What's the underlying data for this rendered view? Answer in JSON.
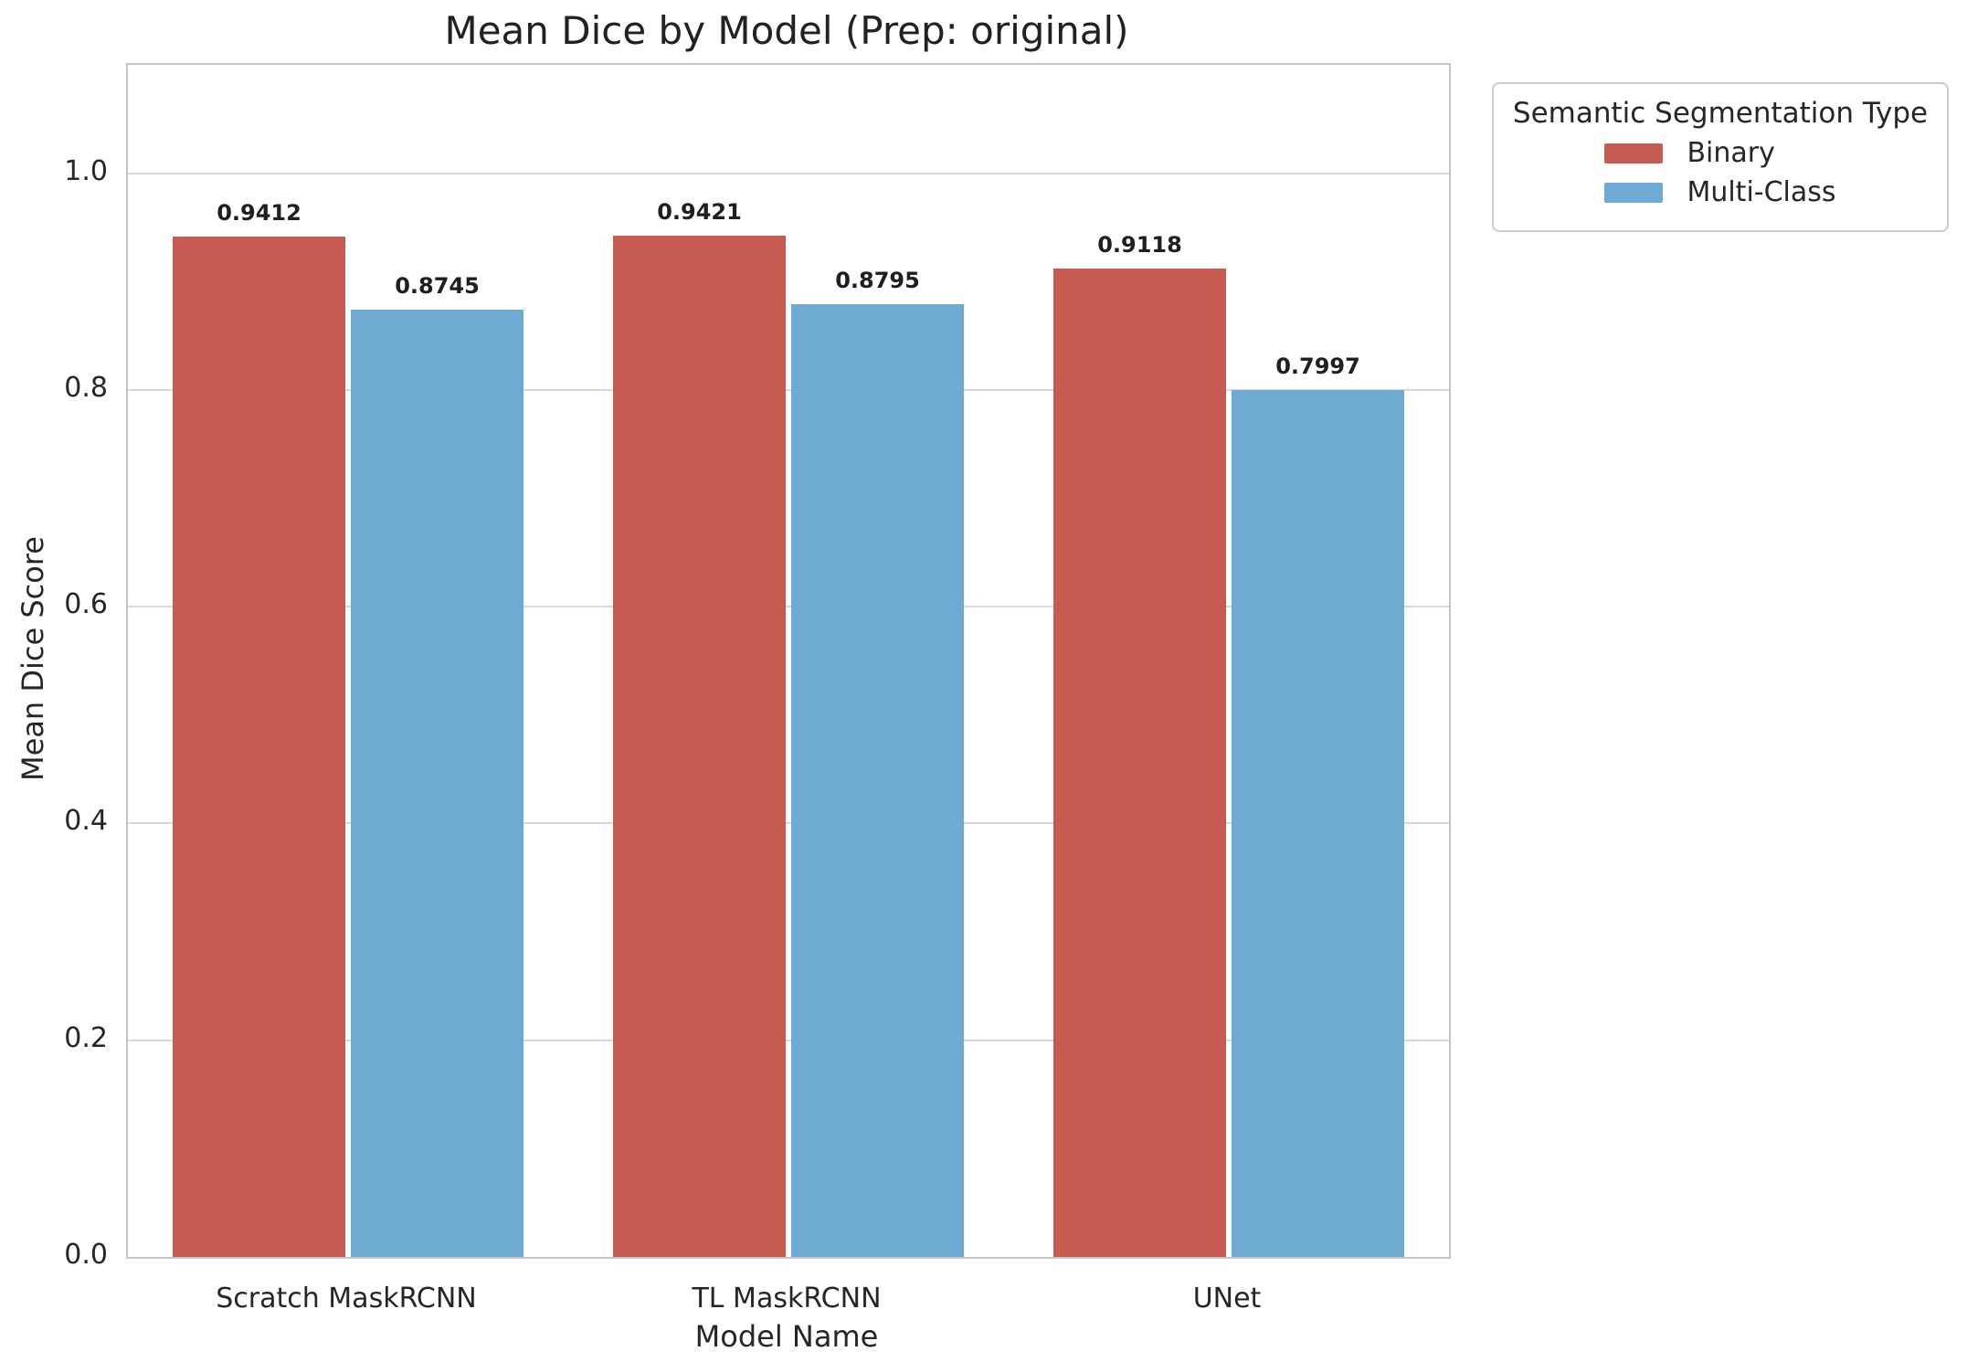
{
  "chart_data": {
    "type": "bar",
    "title": "Mean Dice by Model (Prep: original)",
    "xlabel": "Model Name",
    "ylabel": "Mean Dice Score",
    "categories": [
      "Scratch MaskRCNN",
      "TL MaskRCNN",
      "UNet"
    ],
    "series": [
      {
        "name": "Binary",
        "color": "#c85b51",
        "values": [
          0.9412,
          0.9421,
          0.9118
        ],
        "bar_labels": [
          "0.9412",
          "0.9421",
          "0.9118"
        ]
      },
      {
        "name": "Multi-Class",
        "color": "#6faad2",
        "values": [
          0.8745,
          0.8795,
          0.7997
        ],
        "bar_labels": [
          "0.8745",
          "0.8795",
          "0.7997"
        ]
      }
    ],
    "ylim": [
      0,
      1.1
    ],
    "yticks": [
      0.0,
      0.2,
      0.4,
      0.6,
      0.8,
      1.0
    ],
    "ytick_labels": [
      "0.0",
      "0.2",
      "0.4",
      "0.6",
      "0.8",
      "1.0"
    ],
    "grid": true,
    "legend": {
      "title": "Semantic Segmentation Type",
      "entries": [
        "Binary",
        "Multi-Class"
      ],
      "position": "upper-right-outside"
    },
    "colors": {
      "binary": "#c85b51",
      "multi_class": "#6faad2",
      "grid": "#d9d9d9",
      "spine": "#c6c6c6",
      "text": "#262626"
    }
  }
}
